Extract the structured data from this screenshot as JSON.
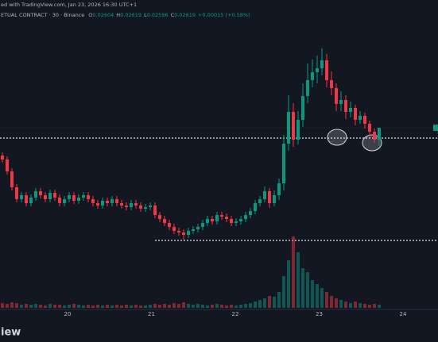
{
  "chart_data": {
    "type": "candlestick",
    "header": {
      "published": "ed with TradingView.com, Jan 23, 2026 16:30 UTC+1",
      "symbol": "ETUAL CONTRACT · 30 · Binance",
      "ohlc": [
        {
          "label": "O",
          "value": "0.02604"
        },
        {
          "label": "H",
          "value": "0.02619"
        },
        {
          "label": "L",
          "value": "0.02596"
        },
        {
          "label": "C",
          "value": "0.02619"
        }
      ],
      "change": "+0.00015 (+0.58%)"
    },
    "brand": "iew",
    "x_labels": [
      "20",
      "21",
      "22",
      "23",
      "24"
    ],
    "up_color": "#089981",
    "down_color": "#f23645",
    "ylim": [
      0.0239,
      0.0278
    ],
    "volume_ylim": [
      0,
      100
    ],
    "levels": [
      0.02606,
      0.02477
    ],
    "open": [
      0.02584,
      0.02579,
      0.02564,
      0.02544,
      0.02529,
      0.02534,
      0.02524,
      0.02531,
      0.02539,
      0.02534,
      0.02529,
      0.02537,
      0.02531,
      0.02524,
      0.02529,
      0.02534,
      0.02527,
      0.02531,
      0.02534,
      0.02529,
      0.02524,
      0.02521,
      0.02527,
      0.02524,
      0.02529,
      0.02524,
      0.02521,
      0.02519,
      0.02524,
      0.02521,
      0.02517,
      0.02519,
      0.02521,
      0.02509,
      0.02504,
      0.02499,
      0.02494,
      0.02489,
      0.02487,
      0.02484,
      0.02489,
      0.02491,
      0.02494,
      0.02499,
      0.02504,
      0.02501,
      0.02509,
      0.02507,
      0.02504,
      0.02499,
      0.02501,
      0.02504,
      0.02509,
      0.02514,
      0.02524,
      0.02529,
      0.02539,
      0.02524,
      0.02534,
      0.02549,
      0.02599,
      0.02639,
      0.02604,
      0.02629,
      0.02659,
      0.02679,
      0.02689,
      0.02694,
      0.02704,
      0.02679,
      0.02669,
      0.02649,
      0.02654,
      0.02639,
      0.02644,
      0.02629,
      0.02634,
      0.02624,
      0.02614,
      0.02604
    ],
    "high": [
      0.02588,
      0.02583,
      0.02568,
      0.02548,
      0.02538,
      0.02538,
      0.02535,
      0.02543,
      0.02543,
      0.02538,
      0.02541,
      0.02541,
      0.02535,
      0.02533,
      0.02538,
      0.02538,
      0.02535,
      0.02538,
      0.02538,
      0.02533,
      0.02528,
      0.02531,
      0.02531,
      0.02533,
      0.02533,
      0.02528,
      0.02525,
      0.02528,
      0.02528,
      0.02525,
      0.02523,
      0.02525,
      0.02525,
      0.02513,
      0.02508,
      0.02503,
      0.02498,
      0.02493,
      0.02491,
      0.02493,
      0.02495,
      0.02498,
      0.02503,
      0.02508,
      0.02508,
      0.02513,
      0.02513,
      0.02511,
      0.02508,
      0.02505,
      0.02508,
      0.02513,
      0.02518,
      0.02528,
      0.02533,
      0.02545,
      0.02543,
      0.0254,
      0.02555,
      0.0261,
      0.0266,
      0.0265,
      0.0264,
      0.02675,
      0.027,
      0.02705,
      0.0271,
      0.02719,
      0.02712,
      0.0269,
      0.02675,
      0.02665,
      0.0266,
      0.02652,
      0.02648,
      0.0264,
      0.02638,
      0.02628,
      0.02618,
      0.02619
    ],
    "low": [
      0.02575,
      0.0256,
      0.0254,
      0.02525,
      0.02525,
      0.0252,
      0.0252,
      0.02527,
      0.0253,
      0.02525,
      0.02525,
      0.02527,
      0.0252,
      0.0252,
      0.02525,
      0.02523,
      0.02523,
      0.02527,
      0.02525,
      0.0252,
      0.02517,
      0.02517,
      0.0252,
      0.0252,
      0.0252,
      0.02517,
      0.02515,
      0.02515,
      0.02517,
      0.02513,
      0.02513,
      0.02515,
      0.02505,
      0.025,
      0.02495,
      0.0249,
      0.02485,
      0.02483,
      0.02477,
      0.0248,
      0.02485,
      0.02487,
      0.0249,
      0.02495,
      0.02497,
      0.02497,
      0.02503,
      0.025,
      0.02495,
      0.02495,
      0.02497,
      0.025,
      0.02505,
      0.0251,
      0.0252,
      0.02525,
      0.02518,
      0.0252,
      0.02528,
      0.0254,
      0.0259,
      0.02595,
      0.02598,
      0.0262,
      0.0265,
      0.0267,
      0.02675,
      0.02685,
      0.0267,
      0.0266,
      0.0264,
      0.0264,
      0.0263,
      0.02632,
      0.02622,
      0.02624,
      0.02618,
      0.02608,
      0.026,
      0.02596
    ],
    "close": [
      0.02579,
      0.02564,
      0.02544,
      0.02529,
      0.02534,
      0.02524,
      0.02531,
      0.02539,
      0.02534,
      0.02529,
      0.02537,
      0.02531,
      0.02524,
      0.02529,
      0.02534,
      0.02527,
      0.02531,
      0.02534,
      0.02529,
      0.02524,
      0.02521,
      0.02527,
      0.02524,
      0.02529,
      0.02524,
      0.02521,
      0.02519,
      0.02524,
      0.02521,
      0.02517,
      0.02519,
      0.02521,
      0.02509,
      0.02504,
      0.02499,
      0.02494,
      0.02489,
      0.02487,
      0.02484,
      0.02489,
      0.02491,
      0.02494,
      0.02499,
      0.02504,
      0.02501,
      0.02509,
      0.02507,
      0.02504,
      0.02499,
      0.02501,
      0.02504,
      0.02509,
      0.02514,
      0.02524,
      0.02529,
      0.02539,
      0.02524,
      0.02534,
      0.02549,
      0.02599,
      0.02639,
      0.02604,
      0.02629,
      0.02659,
      0.02679,
      0.02689,
      0.02694,
      0.02704,
      0.02679,
      0.02669,
      0.02649,
      0.02654,
      0.02639,
      0.02644,
      0.02629,
      0.02634,
      0.02624,
      0.02614,
      0.02604,
      0.02619
    ],
    "volume": [
      6,
      5,
      7,
      6,
      4,
      5,
      4,
      5,
      4,
      3,
      5,
      4,
      4,
      3,
      4,
      5,
      4,
      3,
      4,
      3,
      4,
      3,
      4,
      3,
      4,
      3,
      4,
      3,
      4,
      3,
      3,
      4,
      5,
      4,
      5,
      4,
      6,
      5,
      7,
      5,
      4,
      5,
      4,
      3,
      4,
      5,
      4,
      3,
      4,
      3,
      4,
      5,
      6,
      8,
      10,
      12,
      15,
      14,
      20,
      40,
      60,
      90,
      70,
      50,
      45,
      35,
      30,
      25,
      20,
      15,
      12,
      10,
      8,
      6,
      8,
      6,
      5,
      4,
      5,
      4
    ]
  }
}
